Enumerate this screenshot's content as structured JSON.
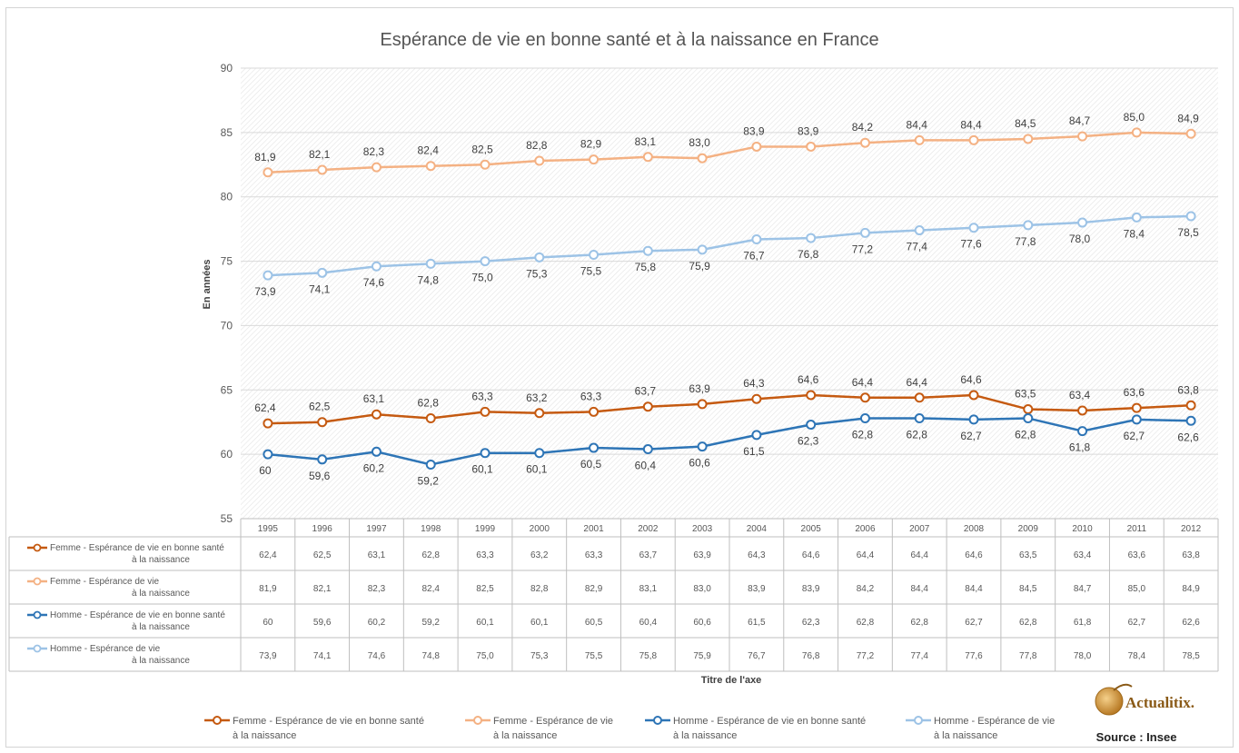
{
  "chart_data": {
    "type": "line",
    "title": "Espérance de vie en bonne santé et à la naissance en France",
    "ylabel": "En années",
    "xlabel": "Titre de l'axe",
    "ylim": [
      55,
      90
    ],
    "yticks": [
      55,
      60,
      65,
      70,
      75,
      80,
      85,
      90
    ],
    "grid": true,
    "legend_position": "bottom",
    "categories": [
      "1995",
      "1996",
      "1997",
      "1998",
      "1999",
      "2000",
      "2001",
      "2002",
      "2003",
      "2004",
      "2005",
      "2006",
      "2007",
      "2008",
      "2009",
      "2010",
      "2011",
      "2012"
    ],
    "series": [
      {
        "name": "Femme - Espérance de vie en bonne santé à la naissance",
        "name_lines": [
          "Femme - Espérance de vie en bonne santé",
          "à la naissance"
        ],
        "color": "#c55a11",
        "label_side": "above",
        "values": [
          62.4,
          62.5,
          63.1,
          62.8,
          63.3,
          63.2,
          63.3,
          63.7,
          63.9,
          64.3,
          64.6,
          64.4,
          64.4,
          64.6,
          63.5,
          63.4,
          63.6,
          63.8
        ],
        "labels": [
          "62,4",
          "62,5",
          "63,1",
          "62,8",
          "63,3",
          "63,2",
          "63,3",
          "63,7",
          "63,9",
          "64,3",
          "64,6",
          "64,4",
          "64,4",
          "64,6",
          "63,5",
          "63,4",
          "63,6",
          "63,8"
        ]
      },
      {
        "name": "Femme - Espérance de vie à la naissance",
        "name_lines": [
          "Femme - Espérance de vie",
          "à la naissance"
        ],
        "color": "#f4b183",
        "label_side": "above",
        "values": [
          81.9,
          82.1,
          82.3,
          82.4,
          82.5,
          82.8,
          82.9,
          83.1,
          83.0,
          83.9,
          83.9,
          84.2,
          84.4,
          84.4,
          84.5,
          84.7,
          85.0,
          84.9
        ],
        "labels": [
          "81,9",
          "82,1",
          "82,3",
          "82,4",
          "82,5",
          "82,8",
          "82,9",
          "83,1",
          "83,0",
          "83,9",
          "83,9",
          "84,2",
          "84,4",
          "84,4",
          "84,5",
          "84,7",
          "85,0",
          "84,9"
        ]
      },
      {
        "name": "Homme - Espérance de vie en bonne santé à la naissance",
        "name_lines": [
          "Homme - Espérance de vie en bonne santé",
          "à la naissance"
        ],
        "color": "#2e75b6",
        "label_side": "below",
        "values": [
          60,
          59.6,
          60.2,
          59.2,
          60.1,
          60.1,
          60.5,
          60.4,
          60.6,
          61.5,
          62.3,
          62.8,
          62.8,
          62.7,
          62.8,
          61.8,
          62.7,
          62.6
        ],
        "labels": [
          "60",
          "59,6",
          "60,2",
          "59,2",
          "60,1",
          "60,1",
          "60,5",
          "60,4",
          "60,6",
          "61,5",
          "62,3",
          "62,8",
          "62,8",
          "62,7",
          "62,8",
          "61,8",
          "62,7",
          "62,6"
        ]
      },
      {
        "name": "Homme - Espérance de vie à la naissance",
        "name_lines": [
          "Homme - Espérance de vie",
          "à la naissance"
        ],
        "color": "#9dc3e6",
        "label_side": "below",
        "values": [
          73.9,
          74.1,
          74.6,
          74.8,
          75.0,
          75.3,
          75.5,
          75.8,
          75.9,
          76.7,
          76.8,
          77.2,
          77.4,
          77.6,
          77.8,
          78.0,
          78.4,
          78.5
        ],
        "labels": [
          "73,9",
          "74,1",
          "74,6",
          "74,8",
          "75,0",
          "75,3",
          "75,5",
          "75,8",
          "75,9",
          "76,7",
          "76,8",
          "77,2",
          "77,4",
          "77,6",
          "77,8",
          "78,0",
          "78,4",
          "78,5"
        ]
      }
    ],
    "table_rows": [
      [
        "62,4",
        "62,5",
        "63,1",
        "62,8",
        "63,3",
        "63,2",
        "63,3",
        "63,7",
        "63,9",
        "64,3",
        "64,6",
        "64,4",
        "64,4",
        "64,6",
        "63,5",
        "63,4",
        "63,6",
        "63,8"
      ],
      [
        "81,9",
        "82,1",
        "82,3",
        "82,4",
        "82,5",
        "82,8",
        "82,9",
        "83,1",
        "83,0",
        "83,9",
        "83,9",
        "84,2",
        "84,4",
        "84,4",
        "84,5",
        "84,7",
        "85,0",
        "84,9"
      ],
      [
        "60",
        "59,6",
        "60,2",
        "59,2",
        "60,1",
        "60,1",
        "60,5",
        "60,4",
        "60,6",
        "61,5",
        "62,3",
        "62,8",
        "62,8",
        "62,7",
        "62,8",
        "61,8",
        "62,7",
        "62,6"
      ],
      [
        "73,9",
        "74,1",
        "74,6",
        "74,8",
        "75,0",
        "75,3",
        "75,5",
        "75,8",
        "75,9",
        "76,7",
        "76,8",
        "77,2",
        "77,4",
        "77,6",
        "77,8",
        "78,0",
        "78,4",
        "78,5"
      ]
    ]
  },
  "logo": {
    "text": "Actualitix."
  },
  "source": "Source : Insee"
}
